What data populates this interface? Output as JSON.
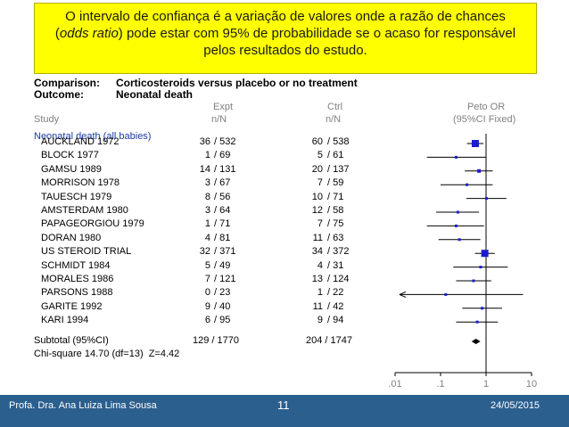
{
  "callout": {
    "line1": "O intervalo de confiança é a variação de valores onde a razão de chances",
    "line2_italic": "odds ratio",
    "line2_rest": ") pode estar com 95% de probabilidade se o acaso for responsável",
    "line2_open": "(",
    "line3": "pelos resultados do estudo."
  },
  "header": {
    "comparison_label": "Comparison:",
    "comparison_value": "Corticosteroids versus placebo or no treatment",
    "outcome_label": "Outcome:",
    "outcome_value": "Neonatal death"
  },
  "columns": {
    "expt_top": "Expt",
    "expt_bottom": "n/N",
    "ctrl_top": "Ctrl",
    "ctrl_bottom": "n/N",
    "study": "Study",
    "peto_top": "Peto OR",
    "peto_bottom": "(95%CI Fixed)"
  },
  "subgroup": "Neonatal death (all babies)",
  "subtotal": {
    "label": "Subtotal (95%CI)",
    "expt": "129 / 1770",
    "ctrl": "204 / 1747"
  },
  "chi_square": "Chi-square 14.70 (df=13)  Z=4.42",
  "chart_data": {
    "type": "forest",
    "xscale": "log",
    "xlim": [
      0.01,
      10
    ],
    "ticks": [
      ".01",
      ".1",
      "1",
      "10"
    ],
    "tick_values": [
      0.01,
      0.1,
      1,
      10
    ],
    "studies": [
      {
        "name": "AUCKLAND 1972",
        "expt": "36",
        "expt_n": "532",
        "ctrl": "60",
        "ctrl_n": "538",
        "or": 0.58,
        "lo": 0.38,
        "hi": 0.88,
        "box": "large"
      },
      {
        "name": "BLOCK 1977",
        "expt": "1",
        "expt_n": "69",
        "ctrl": "5",
        "ctrl_n": "61",
        "or": 0.22,
        "lo": 0.05,
        "hi": 0.98,
        "box": "small"
      },
      {
        "name": "GAMSU 1989",
        "expt": "14",
        "expt_n": "131",
        "ctrl": "20",
        "ctrl_n": "137",
        "or": 0.7,
        "lo": 0.34,
        "hi": 1.4,
        "box": "medium"
      },
      {
        "name": "MORRISON 1978",
        "expt": "3",
        "expt_n": "67",
        "ctrl": "7",
        "ctrl_n": "59",
        "or": 0.38,
        "lo": 0.1,
        "hi": 1.4,
        "box": "small"
      },
      {
        "name": "TAUESCH 1979",
        "expt": "8",
        "expt_n": "56",
        "ctrl": "10",
        "ctrl_n": "71",
        "or": 1.02,
        "lo": 0.37,
        "hi": 2.8,
        "box": "small"
      },
      {
        "name": "AMSTERDAM 1980",
        "expt": "3",
        "expt_n": "64",
        "ctrl": "12",
        "ctrl_n": "58",
        "or": 0.24,
        "lo": 0.08,
        "hi": 0.7,
        "box": "small"
      },
      {
        "name": "PAPAGEORGIOU 1979",
        "expt": "1",
        "expt_n": "71",
        "ctrl": "7",
        "ctrl_n": "75",
        "or": 0.22,
        "lo": 0.05,
        "hi": 0.9,
        "box": "small"
      },
      {
        "name": "DORAN 1980",
        "expt": "4",
        "expt_n": "81",
        "ctrl": "11",
        "ctrl_n": "63",
        "or": 0.26,
        "lo": 0.09,
        "hi": 0.75,
        "box": "small"
      },
      {
        "name": "US STEROID TRIAL",
        "expt": "32",
        "expt_n": "371",
        "ctrl": "34",
        "ctrl_n": "372",
        "or": 0.94,
        "lo": 0.57,
        "hi": 1.55,
        "box": "large"
      },
      {
        "name": "SCHMIDT 1984",
        "expt": "5",
        "expt_n": "49",
        "ctrl": "4",
        "ctrl_n": "31",
        "or": 0.76,
        "lo": 0.19,
        "hi": 3.0,
        "box": "small"
      },
      {
        "name": "MORALES 1986",
        "expt": "7",
        "expt_n": "121",
        "ctrl": "13",
        "ctrl_n": "124",
        "or": 0.53,
        "lo": 0.22,
        "hi": 1.3,
        "box": "small"
      },
      {
        "name": "PARSONS 1988",
        "expt": "0",
        "expt_n": "23",
        "ctrl": "1",
        "ctrl_n": "22",
        "or": 0.13,
        "lo": 0.005,
        "hi": 6.5,
        "box": "small",
        "arrow_left": true
      },
      {
        "name": "GARITE 1992",
        "expt": "9",
        "expt_n": "40",
        "ctrl": "11",
        "ctrl_n": "42",
        "or": 0.82,
        "lo": 0.3,
        "hi": 2.25,
        "box": "small"
      },
      {
        "name": "KARI 1994",
        "expt": "6",
        "expt_n": "95",
        "ctrl": "9",
        "ctrl_n": "94",
        "or": 0.64,
        "lo": 0.22,
        "hi": 1.82,
        "box": "small"
      }
    ],
    "pooled": {
      "or": 0.6,
      "lo": 0.48,
      "hi": 0.75
    }
  },
  "colors": {
    "marker": "#1c1ccf",
    "line": "#000000",
    "callout_bg": "#ffff00",
    "footer_bg": "#2b5f8e",
    "subgroup": "#1a3aa0"
  },
  "footer": {
    "author": "Profa. Dra. Ana Luiza Lima Sousa",
    "page": "11",
    "date": "24/05/2015"
  }
}
